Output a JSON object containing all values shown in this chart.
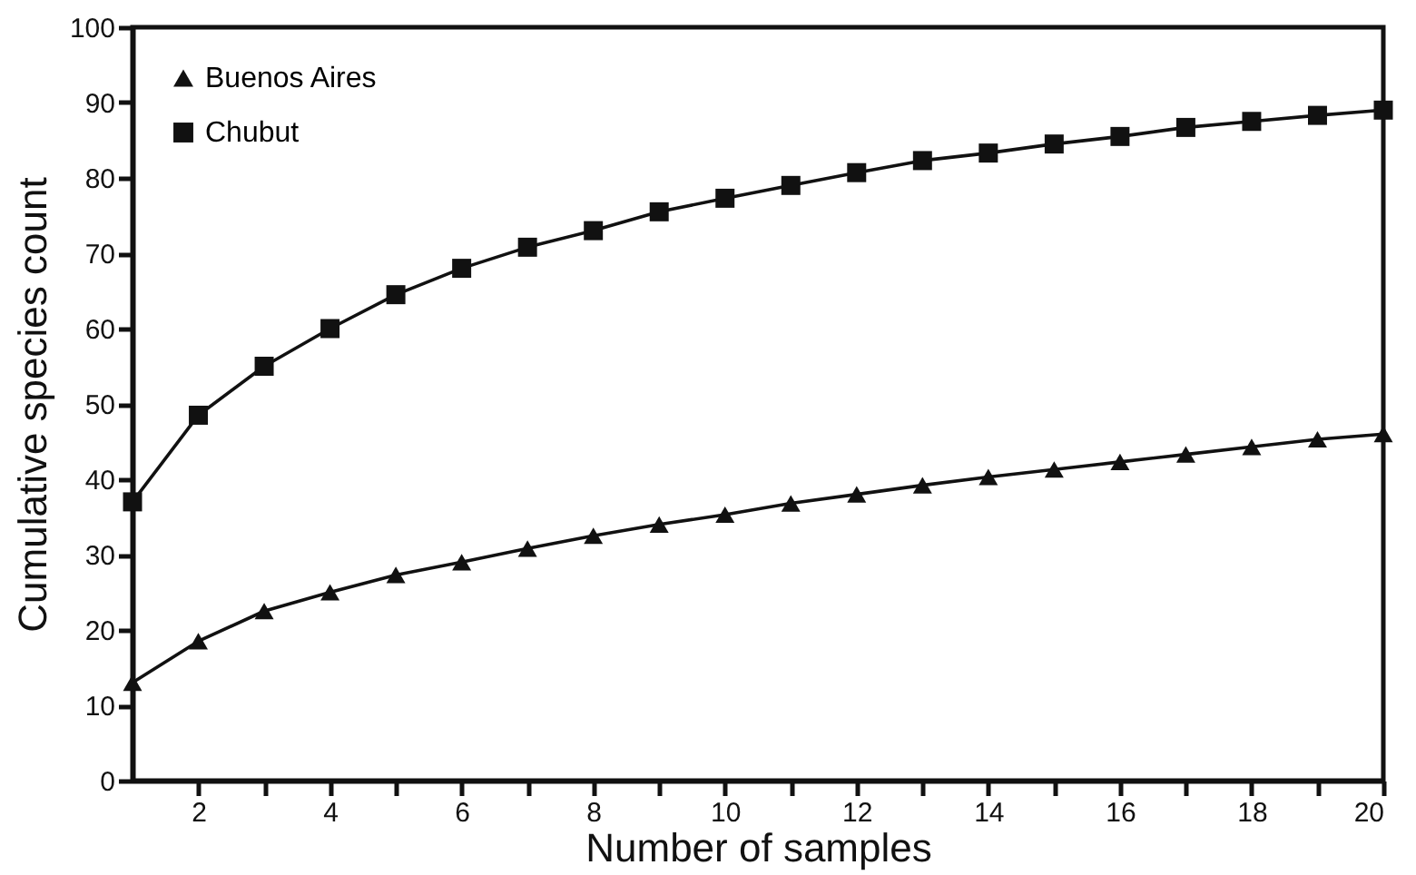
{
  "chart_data": {
    "type": "line",
    "xlabel": "Number of samples",
    "ylabel": "Cumulative species count",
    "x": [
      1,
      2,
      3,
      4,
      5,
      6,
      7,
      8,
      9,
      10,
      11,
      12,
      13,
      14,
      15,
      16,
      17,
      18,
      19,
      20
    ],
    "series": [
      {
        "name": "Buenos Aires",
        "color": "#111111",
        "marker": "triangle",
        "values": [
          13,
          18.5,
          22.5,
          25,
          27.3,
          29,
          30.8,
          32.5,
          34,
          35.3,
          36.8,
          38,
          39.2,
          40.3,
          41.3,
          42.3,
          43.3,
          44.3,
          45.3,
          46
        ]
      },
      {
        "name": "Chubut",
        "color": "#111111",
        "marker": "square",
        "values": [
          37,
          48.5,
          55,
          60,
          64.5,
          68,
          70.8,
          73,
          75.5,
          77.3,
          79,
          80.7,
          82.3,
          83.3,
          84.5,
          85.5,
          86.7,
          87.5,
          88.3,
          89
        ]
      }
    ],
    "xlim": [
      1,
      20
    ],
    "xticks": [
      2,
      {
        "value": 3,
        "label": null
      },
      4,
      {
        "value": 5,
        "label": null
      },
      6,
      {
        "value": 7,
        "label": null
      },
      8,
      {
        "value": 9,
        "label": null
      },
      10,
      {
        "value": 11,
        "label": null
      },
      12,
      {
        "value": 13,
        "label": null
      },
      14,
      {
        "value": 15,
        "label": null
      },
      16,
      {
        "value": 17,
        "label": null
      },
      18,
      {
        "value": 19,
        "label": null
      },
      20
    ],
    "ylim": [
      0,
      100
    ],
    "yticks": [
      0,
      10,
      20,
      30,
      40,
      50,
      60,
      70,
      80,
      90,
      100
    ],
    "grid": false,
    "legend": "top left",
    "line_style": "solid"
  }
}
